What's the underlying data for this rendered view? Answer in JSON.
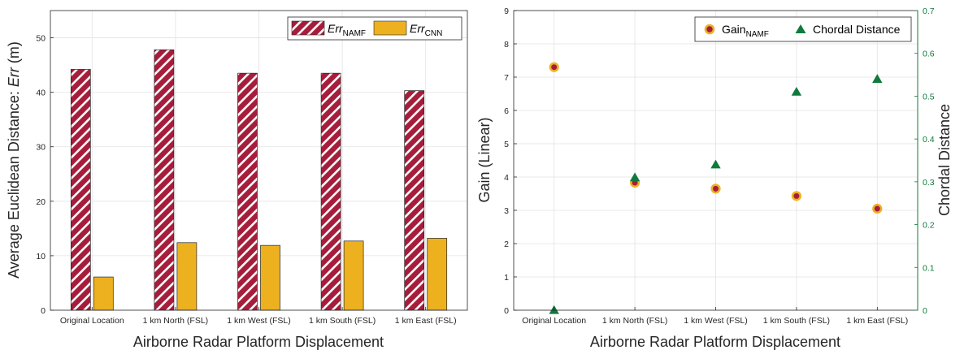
{
  "chart_data": [
    {
      "type": "bar",
      "categories": [
        "Original Location",
        "1 km North (FSL)",
        "1 km West (FSL)",
        "1 km South (FSL)",
        "1 km East (FSL)"
      ],
      "series": [
        {
          "name_main": "Err",
          "name_sub": "NAMF",
          "color": "#a61d3c",
          "pattern": "white-diagonal-hatch",
          "values": [
            44.2,
            47.8,
            43.5,
            43.5,
            40.3
          ]
        },
        {
          "name_main": "Err",
          "name_sub": "CNN",
          "color": "#edb120",
          "values": [
            6.1,
            12.4,
            11.9,
            12.7,
            13.2
          ]
        }
      ],
      "xlabel": "Airborne Radar Platform Displacement",
      "ylabel_prefix": "Average Euclidean Distance: ",
      "ylabel_italic": "Err",
      "ylabel_suffix": " (m)",
      "ylim": [
        0,
        55
      ],
      "yticks": [
        "0",
        "10",
        "20",
        "30",
        "40",
        "50"
      ],
      "grid": true,
      "legend": "top-right"
    },
    {
      "type": "scatter",
      "categories": [
        "Original Location",
        "1 km North (FSL)",
        "1 km West (FSL)",
        "1 km South (FSL)",
        "1 km East (FSL)"
      ],
      "series": [
        {
          "name_main": "Gain",
          "name_sub": "NAMF",
          "axis": "left",
          "marker": "circle",
          "face_color": "#a61d3c",
          "edge_color": "#edb120",
          "values": [
            7.3,
            3.83,
            3.65,
            3.43,
            3.05
          ]
        },
        {
          "name": "Chordal Distance",
          "axis": "right",
          "marker": "triangle",
          "color": "#0f7a3c",
          "values": [
            0.0,
            0.31,
            0.34,
            0.51,
            0.54
          ]
        }
      ],
      "xlabel": "Airborne Radar Platform Displacement",
      "ylabel_left": "Gain (Linear)",
      "ylabel_right": "Chordal Distance",
      "right_axis_color": "#0f7a3c",
      "ylim_left": [
        0,
        9
      ],
      "ylim_right": [
        0,
        0.7
      ],
      "yticks_left": [
        "0",
        "1",
        "2",
        "3",
        "4",
        "5",
        "6",
        "7",
        "8",
        "9"
      ],
      "yticks_right": [
        "0",
        "0.1",
        "0.2",
        "0.3",
        "0.4",
        "0.5",
        "0.6",
        "0.7"
      ],
      "grid": true,
      "legend": "top-right"
    }
  ]
}
